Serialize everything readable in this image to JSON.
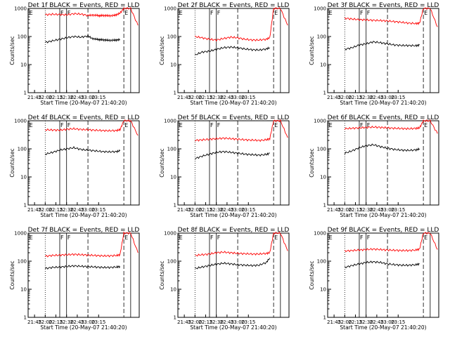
{
  "colors": {
    "events": "#000000",
    "lld": "#ff0000",
    "axes": "#000000",
    "background": "#ffffff"
  },
  "chart_data": [
    {
      "type": "line",
      "title": "Det 1f BLACK = Events, RED = LLD",
      "xlabel": "Start Time (20-May-07 21:40:20)",
      "ylabel": "Counts/sec",
      "yscale": "log",
      "ylim": [
        1,
        1000
      ],
      "x_ticks": [
        "21:45",
        "22:00",
        "22:15",
        "22:30",
        "22:45",
        "23:00",
        "23:15"
      ],
      "y_ticks": [
        "1",
        "10",
        "100",
        "1000"
      ],
      "annotations": [
        "E",
        "F",
        "F",
        "E"
      ],
      "series": [
        {
          "color": "red",
          "x": [
            22.0,
            22.17,
            22.34,
            22.5,
            22.67,
            22.84,
            23.0,
            23.1,
            23.2,
            23.27,
            23.34,
            23.42,
            23.5,
            23.6,
            23.67,
            23.75,
            23.84,
            24.0,
            24.17
          ],
          "y": [
            600,
            620,
            610,
            590,
            650,
            630,
            560,
            580,
            570,
            550,
            560,
            560,
            550,
            560,
            600,
            680,
            1000,
            1000,
            250
          ]
        },
        {
          "color": "black",
          "x": [
            22.0,
            22.17,
            22.34,
            22.5,
            22.67,
            22.84,
            23.0,
            23.1,
            23.2,
            23.27,
            23.34,
            23.42,
            23.5,
            23.6,
            23.67,
            23.75
          ],
          "y": [
            62,
            70,
            80,
            90,
            100,
            95,
            105,
            85,
            80,
            78,
            76,
            75,
            73,
            74,
            75,
            78
          ]
        }
      ]
    },
    {
      "type": "line",
      "title": "Det 2f BLACK = Events, RED = LLD",
      "xlabel": "Start Time (20-May-07 21:40:20)",
      "ylabel": "Counts/sec",
      "yscale": "log",
      "ylim": [
        1,
        1000
      ],
      "x_ticks": [
        "21:45",
        "22:00",
        "22:15",
        "22:30",
        "22:45",
        "23:00",
        "23:15"
      ],
      "y_ticks": [
        "1",
        "10",
        "100",
        "1000"
      ],
      "annotations": [
        "E",
        "F",
        "F",
        "E"
      ],
      "series": [
        {
          "color": "red",
          "x": [
            22.0,
            22.17,
            22.34,
            22.5,
            22.67,
            22.84,
            23.0,
            23.17,
            23.34,
            23.5,
            23.67,
            23.75,
            23.84,
            24.0,
            24.17
          ],
          "y": [
            100,
            90,
            80,
            75,
            85,
            95,
            90,
            80,
            75,
            75,
            80,
            90,
            1000,
            1000,
            250
          ]
        },
        {
          "color": "black",
          "x": [
            22.0,
            22.17,
            22.34,
            22.5,
            22.67,
            22.84,
            23.0,
            23.17,
            23.34,
            23.5,
            23.67,
            23.75
          ],
          "y": [
            22,
            28,
            30,
            35,
            40,
            42,
            40,
            36,
            34,
            33,
            36,
            40
          ]
        }
      ]
    },
    {
      "type": "line",
      "title": "Det 3f BLACK = Events, RED = LLD",
      "xlabel": "Start Time (20-May-07 21:40:20)",
      "ylabel": "Counts/sec",
      "yscale": "log",
      "ylim": [
        1,
        1000
      ],
      "x_ticks": [
        "21:45",
        "22:00",
        "22:15",
        "22:30",
        "22:45",
        "23:00",
        "23:15"
      ],
      "y_ticks": [
        "1",
        "10",
        "100",
        "1000"
      ],
      "annotations": [
        "E",
        "F",
        "F",
        "E"
      ],
      "series": [
        {
          "color": "red",
          "x": [
            22.0,
            22.17,
            22.34,
            22.5,
            22.67,
            22.84,
            23.0,
            23.17,
            23.34,
            23.5,
            23.67,
            23.75,
            23.84,
            24.0,
            24.17
          ],
          "y": [
            450,
            420,
            400,
            390,
            380,
            370,
            360,
            340,
            320,
            300,
            290,
            300,
            1000,
            1000,
            220
          ]
        },
        {
          "color": "black",
          "x": [
            22.0,
            22.17,
            22.34,
            22.5,
            22.67,
            22.84,
            23.0,
            23.17,
            23.34,
            23.5,
            23.67,
            23.75
          ],
          "y": [
            35,
            40,
            50,
            55,
            65,
            60,
            55,
            50,
            48,
            48,
            47,
            50
          ]
        }
      ]
    },
    {
      "type": "line",
      "title": "Det 4f BLACK = Events, RED = LLD",
      "xlabel": "Start Time (20-May-07 21:40:20)",
      "ylabel": "Counts/sec",
      "yscale": "log",
      "ylim": [
        1,
        1000
      ],
      "x_ticks": [
        "21:45",
        "22:00",
        "22:15",
        "22:30",
        "22:45",
        "23:00",
        "23:15"
      ],
      "y_ticks": [
        "1",
        "10",
        "100",
        "1000"
      ],
      "annotations": [
        "E",
        "F",
        "F",
        "E"
      ],
      "series": [
        {
          "color": "red",
          "x": [
            22.0,
            22.17,
            22.34,
            22.5,
            22.67,
            22.84,
            23.0,
            23.17,
            23.34,
            23.5,
            23.67,
            23.75,
            23.84,
            24.0,
            24.17
          ],
          "y": [
            480,
            470,
            460,
            500,
            520,
            490,
            480,
            460,
            450,
            440,
            450,
            480,
            1000,
            1000,
            300
          ]
        },
        {
          "color": "black",
          "x": [
            22.0,
            22.17,
            22.34,
            22.5,
            22.67,
            22.84,
            23.0,
            23.17,
            23.34,
            23.5,
            23.67,
            23.75
          ],
          "y": [
            65,
            75,
            90,
            100,
            110,
            95,
            90,
            85,
            80,
            78,
            80,
            85
          ]
        }
      ]
    },
    {
      "type": "line",
      "title": "Det 5f BLACK = Events, RED = LLD",
      "xlabel": "Start Time (20-May-07 21:40:20)",
      "ylabel": "Counts/sec",
      "yscale": "log",
      "ylim": [
        1,
        1000
      ],
      "x_ticks": [
        "21:45",
        "22:00",
        "22:15",
        "22:30",
        "22:45",
        "23:00",
        "23:15"
      ],
      "y_ticks": [
        "1",
        "10",
        "100",
        "1000"
      ],
      "annotations": [
        "E",
        "F",
        "F",
        "E"
      ],
      "series": [
        {
          "color": "red",
          "x": [
            22.0,
            22.17,
            22.34,
            22.5,
            22.67,
            22.84,
            23.0,
            23.17,
            23.34,
            23.5,
            23.67,
            23.75,
            23.84,
            24.0,
            24.17
          ],
          "y": [
            200,
            210,
            220,
            230,
            240,
            230,
            220,
            210,
            205,
            200,
            210,
            230,
            1000,
            1000,
            250
          ]
        },
        {
          "color": "black",
          "x": [
            22.0,
            22.17,
            22.34,
            22.5,
            22.67,
            22.84,
            23.0,
            23.17,
            23.34,
            23.5,
            23.67,
            23.75
          ],
          "y": [
            45,
            55,
            65,
            75,
            80,
            75,
            70,
            65,
            62,
            60,
            63,
            70
          ]
        }
      ]
    },
    {
      "type": "line",
      "title": "Det 6f BLACK = Events, RED = LLD",
      "xlabel": "Start Time (20-May-07 21:40:20)",
      "ylabel": "Counts/sec",
      "yscale": "log",
      "ylim": [
        1,
        1000
      ],
      "x_ticks": [
        "21:45",
        "22:00",
        "22:15",
        "22:30",
        "22:45",
        "23:00",
        "23:15"
      ],
      "y_ticks": [
        "1",
        "10",
        "100",
        "1000"
      ],
      "annotations": [
        "E",
        "F",
        "F",
        "E"
      ],
      "series": [
        {
          "color": "red",
          "x": [
            22.0,
            22.17,
            22.34,
            22.5,
            22.67,
            22.84,
            23.0,
            23.17,
            23.34,
            23.5,
            23.67,
            23.75,
            23.84,
            24.0,
            24.17
          ],
          "y": [
            520,
            540,
            560,
            580,
            600,
            580,
            560,
            540,
            530,
            520,
            540,
            560,
            1000,
            1000,
            350
          ]
        },
        {
          "color": "black",
          "x": [
            22.0,
            22.17,
            22.34,
            22.5,
            22.67,
            22.84,
            23.0,
            23.17,
            23.34,
            23.5,
            23.67,
            23.75
          ],
          "y": [
            70,
            85,
            110,
            130,
            140,
            120,
            105,
            95,
            90,
            88,
            92,
            100
          ]
        }
      ]
    },
    {
      "type": "line",
      "title": "Det 7f BLACK = Events, RED = LLD",
      "xlabel": "Start Time (20-May-07 21:40:20)",
      "ylabel": "Counts/sec",
      "yscale": "log",
      "ylim": [
        1,
        1000
      ],
      "x_ticks": [
        "21:45",
        "22:00",
        "22:15",
        "22:30",
        "22:45",
        "23:00",
        "23:15"
      ],
      "y_ticks": [
        "1",
        "10",
        "100",
        "1000"
      ],
      "annotations": [
        "E",
        "F",
        "F",
        "E"
      ],
      "series": [
        {
          "color": "red",
          "x": [
            22.0,
            22.17,
            22.34,
            22.5,
            22.67,
            22.84,
            23.0,
            23.17,
            23.34,
            23.5,
            23.67,
            23.75,
            23.84,
            24.0,
            24.17
          ],
          "y": [
            150,
            160,
            165,
            170,
            175,
            170,
            165,
            160,
            155,
            155,
            160,
            170,
            1000,
            1000,
            200
          ]
        },
        {
          "color": "black",
          "x": [
            22.0,
            22.17,
            22.34,
            22.5,
            22.67,
            22.84,
            23.0,
            23.17,
            23.34,
            23.5,
            23.67,
            23.75
          ],
          "y": [
            55,
            60,
            62,
            65,
            68,
            66,
            64,
            62,
            60,
            60,
            62,
            65
          ]
        }
      ]
    },
    {
      "type": "line",
      "title": "Det 8f BLACK = Events, RED = LLD",
      "xlabel": "Start Time (20-May-07 21:40:20)",
      "ylabel": "Counts/sec",
      "yscale": "log",
      "ylim": [
        1,
        1000
      ],
      "x_ticks": [
        "21:45",
        "22:00",
        "22:15",
        "22:30",
        "22:45",
        "23:00",
        "23:15"
      ],
      "y_ticks": [
        "1",
        "10",
        "100",
        "1000"
      ],
      "annotations": [
        "E",
        "F",
        "F",
        "E"
      ],
      "series": [
        {
          "color": "red",
          "x": [
            22.0,
            22.17,
            22.34,
            22.5,
            22.67,
            22.84,
            23.0,
            23.17,
            23.34,
            23.5,
            23.67,
            23.75,
            23.84,
            24.0,
            24.17
          ],
          "y": [
            160,
            170,
            180,
            200,
            210,
            200,
            190,
            185,
            180,
            180,
            190,
            200,
            1000,
            1000,
            230
          ]
        },
        {
          "color": "black",
          "x": [
            22.0,
            22.17,
            22.34,
            22.5,
            22.67,
            22.84,
            23.0,
            23.17,
            23.34,
            23.5,
            23.67,
            23.75
          ],
          "y": [
            55,
            62,
            70,
            78,
            85,
            80,
            75,
            72,
            70,
            72,
            90,
            130
          ]
        }
      ]
    },
    {
      "type": "line",
      "title": "Det 9f BLACK = Events, RED = LLD",
      "xlabel": "Start Time (20-May-07 21:40:20)",
      "ylabel": "Counts/sec",
      "yscale": "log",
      "ylim": [
        1,
        1000
      ],
      "x_ticks": [
        "21:45",
        "22:00",
        "22:15",
        "22:30",
        "22:45",
        "23:00",
        "23:15"
      ],
      "y_ticks": [
        "1",
        "10",
        "100",
        "1000"
      ],
      "annotations": [
        "E",
        "F",
        "F",
        "E"
      ],
      "series": [
        {
          "color": "red",
          "x": [
            22.0,
            22.17,
            22.34,
            22.5,
            22.67,
            22.84,
            23.0,
            23.17,
            23.34,
            23.5,
            23.67,
            23.75,
            23.84,
            24.0,
            24.17
          ],
          "y": [
            230,
            240,
            250,
            260,
            270,
            260,
            250,
            245,
            240,
            240,
            250,
            270,
            1000,
            1000,
            260
          ]
        },
        {
          "color": "black",
          "x": [
            22.0,
            22.17,
            22.34,
            22.5,
            22.67,
            22.84,
            23.0,
            23.17,
            23.34,
            23.5,
            23.67,
            23.75
          ],
          "y": [
            60,
            70,
            80,
            90,
            95,
            90,
            80,
            75,
            72,
            72,
            75,
            80
          ]
        }
      ]
    }
  ]
}
